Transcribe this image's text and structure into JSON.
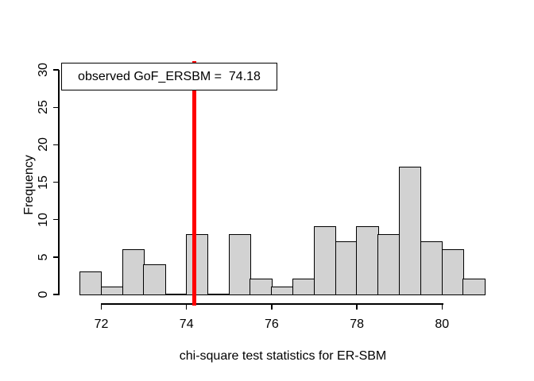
{
  "figure": {
    "background": "#ffffff",
    "text_color": "#000000"
  },
  "chart_data": {
    "type": "bar",
    "subtype": "histogram",
    "title": "",
    "xlabel": "chi-square test statistics for ER-SBM",
    "ylabel": "Frequency",
    "bin_start": 71.5,
    "bin_width": 0.5,
    "bin_edges": [
      71.5,
      72,
      72.5,
      73,
      73.5,
      74,
      74.5,
      75,
      75.5,
      76,
      76.5,
      77,
      77.5,
      78,
      78.5,
      79,
      79.5,
      80,
      80.5,
      81
    ],
    "values": [
      3,
      1,
      6,
      4,
      0,
      8,
      0,
      8,
      2,
      1,
      2,
      9,
      7,
      9,
      8,
      17,
      7,
      6,
      2
    ],
    "total_count": 100,
    "x_ticks": [
      "72",
      "74",
      "76",
      "78",
      "80"
    ],
    "x_tick_values": [
      72,
      74,
      76,
      78,
      80
    ],
    "y_ticks": [
      "0",
      "5",
      "10",
      "15",
      "20",
      "25",
      "30"
    ],
    "y_tick_values": [
      0,
      5,
      10,
      15,
      20,
      25,
      30
    ],
    "xlim": [
      71.5,
      81
    ],
    "ylim": [
      0,
      30
    ],
    "grid": false,
    "bar_fill": "#d2d2d2",
    "bar_border": "#000000",
    "annotation": {
      "label": "observed GoF_ERSBM =  74.18",
      "vline_x": 74.18,
      "vline_color": "#ff0000",
      "legend_position": "topleft"
    }
  }
}
